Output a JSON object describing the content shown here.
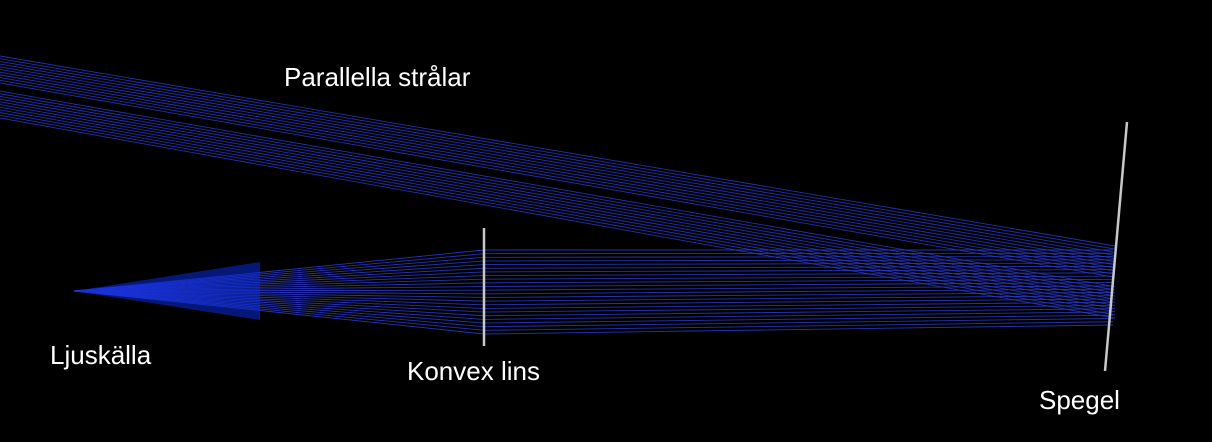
{
  "labels": {
    "parallel_rays": "Parallella strålar",
    "light_source": "Ljuskälla",
    "convex_lens": "Konvex lins",
    "mirror": "Spegel"
  },
  "colors": {
    "background": "#000000",
    "ray": "#2b3bd6",
    "ray_bright": "#1a3cff",
    "optics": "#c8c8c8",
    "text": "#ffffff"
  }
}
